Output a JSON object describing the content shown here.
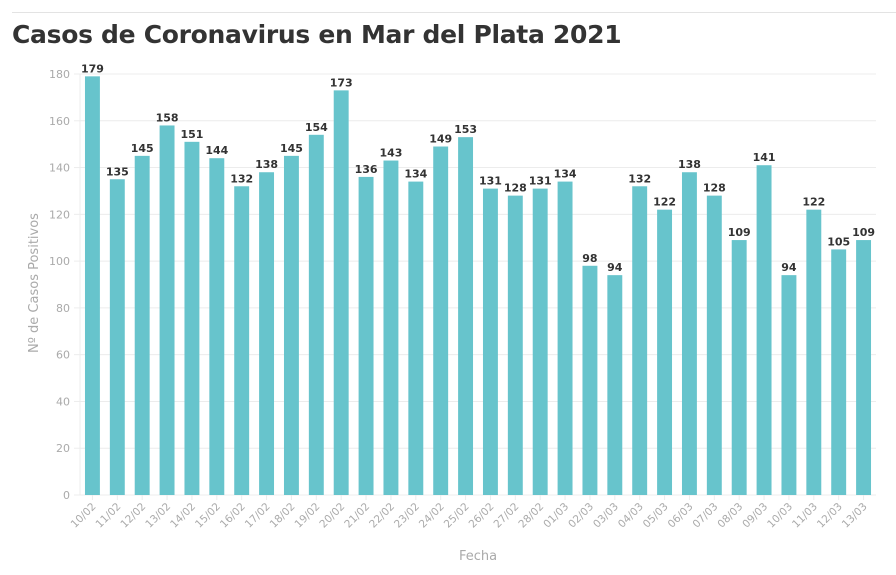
{
  "title": "Casos de Coronavirus en Mar del Plata 2021",
  "colors": {
    "bar": "#67c4cc",
    "grid": "#ececec",
    "tick_text": "#aaaaaa",
    "label_text": "#333333"
  },
  "chart_data": {
    "type": "bar",
    "title": "Casos de Coronavirus en Mar del Plata 2021",
    "xlabel": "Fecha",
    "ylabel": "Nº de Casos Positivos",
    "ylim": [
      0,
      180
    ],
    "yticks": [
      0,
      20,
      40,
      60,
      80,
      100,
      120,
      140,
      160,
      180
    ],
    "grid": true,
    "legend": "none",
    "categories": [
      "10/02",
      "11/02",
      "12/02",
      "13/02",
      "14/02",
      "15/02",
      "16/02",
      "17/02",
      "18/02",
      "19/02",
      "20/02",
      "21/02",
      "22/02",
      "23/02",
      "24/02",
      "25/02",
      "26/02",
      "27/02",
      "28/02",
      "01/03",
      "02/03",
      "03/03",
      "04/03",
      "05/03",
      "06/03",
      "07/03",
      "08/03",
      "09/03",
      "10/03",
      "11/03",
      "12/03",
      "13/03"
    ],
    "values": [
      179,
      135,
      145,
      158,
      151,
      144,
      132,
      138,
      145,
      154,
      173,
      136,
      143,
      134,
      149,
      153,
      131,
      128,
      131,
      134,
      98,
      94,
      132,
      122,
      138,
      128,
      109,
      141,
      94,
      122,
      105,
      109
    ]
  }
}
